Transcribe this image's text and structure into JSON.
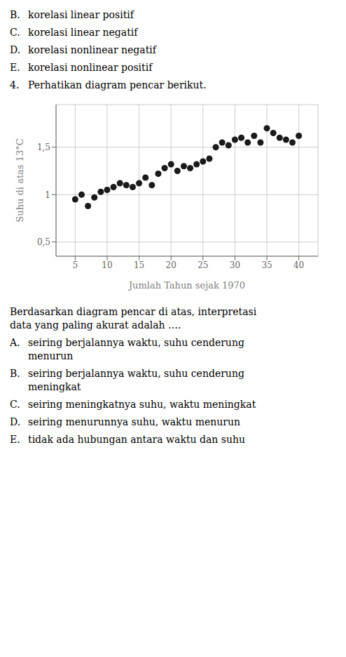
{
  "chart_data": {
    "type": "scatter",
    "x": [
      5,
      6,
      7,
      8,
      9,
      10,
      11,
      12,
      13,
      14,
      15,
      16,
      17,
      18,
      19,
      20,
      21,
      22,
      23,
      24,
      25,
      26,
      27,
      28,
      29,
      30,
      31,
      32,
      33,
      34,
      35,
      36,
      37,
      38,
      39,
      40
    ],
    "values": [
      0.95,
      1.0,
      0.88,
      0.97,
      1.03,
      1.05,
      1.08,
      1.12,
      1.1,
      1.08,
      1.12,
      1.18,
      1.1,
      1.22,
      1.28,
      1.32,
      1.25,
      1.3,
      1.28,
      1.32,
      1.35,
      1.38,
      1.5,
      1.55,
      1.52,
      1.58,
      1.6,
      1.55,
      1.62,
      1.55,
      1.7,
      1.65,
      1.6,
      1.58,
      1.55,
      1.62
    ],
    "xlabel": "Jumlah Tahun sejak 1970",
    "ylabel": "Suhu di atas 13°C",
    "xlim": [
      2,
      43
    ],
    "ylim": [
      0.35,
      1.95
    ],
    "xticks": [
      5,
      10,
      15,
      20,
      25,
      30,
      35,
      40
    ],
    "yticks": [
      {
        "value": 0.5,
        "label": "0,5"
      },
      1,
      {
        "value": 1.5,
        "label": "1,5"
      }
    ],
    "grid": true,
    "color": "#1a1a1a",
    "annotations": {
      "above": [
        {
          "label": "B.",
          "lines": [
            "korelasi linear positif"
          ]
        },
        {
          "label": "C.",
          "lines": [
            "korelasi linear negatif"
          ]
        },
        {
          "label": "D.",
          "lines": [
            "korelasi nonlinear negatif"
          ]
        },
        {
          "label": "E.",
          "lines": [
            "korelasi nonlinear positif"
          ]
        },
        {
          "label": "4.",
          "lines": [
            "Perhatikan diagram pencar berikut."
          ]
        }
      ],
      "below": [
        {
          "lines": [
            "Berdasarkan diagram pencar di atas, interpretasi",
            "data yang paling akurat adalah …."
          ]
        },
        {
          "label": "A.",
          "lines": [
            "seiring berjalannya waktu, suhu cenderung",
            "menurun"
          ]
        },
        {
          "label": "B.",
          "lines": [
            "seiring berjalannya waktu, suhu cenderung",
            "meningkat"
          ]
        },
        {
          "label": "C.",
          "lines": [
            "seiring meningkatnya suhu, waktu meningkat"
          ]
        },
        {
          "label": "D.",
          "lines": [
            "seiring menurunnya suhu, waktu menurun"
          ]
        },
        {
          "label": "E.",
          "lines": [
            "tidak ada hubungan antara waktu dan suhu"
          ]
        }
      ]
    }
  }
}
